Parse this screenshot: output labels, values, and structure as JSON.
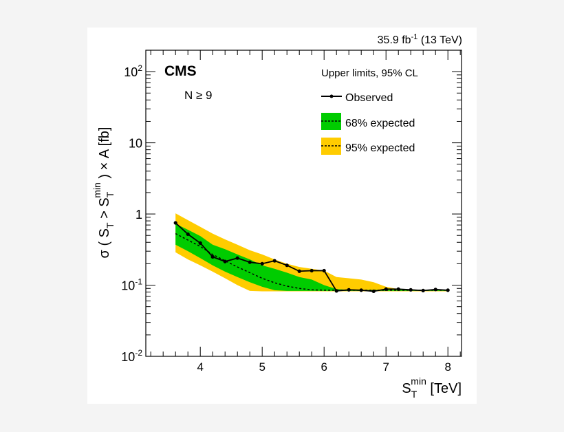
{
  "chart_data": {
    "type": "line",
    "lumi_label": "35.9 fb",
    "lumi_sup": "-1",
    "lumi_energy": "(13 TeV)",
    "experiment": "CMS",
    "selection": "N ≥ 9",
    "legend_title": "Upper limits, 95% CL",
    "legend_placement": "top-right",
    "xlabel": {
      "main": "S",
      "sub": "T",
      "sup": "min",
      "unit": "[TeV]"
    },
    "ylabel": [
      "σ ( S",
      "T",
      " > S",
      "T",
      "min",
      " ) × A [fb]"
    ],
    "xlim": [
      3.12,
      8.22
    ],
    "ylim": [
      0.01,
      200
    ],
    "yscale": "log",
    "grid": false,
    "x_ticks": [
      "4",
      "5",
      "6",
      "7",
      "8"
    ],
    "y_ticks": [
      {
        "base": "10",
        "exp": "-2"
      },
      {
        "base": "10",
        "exp": "-1"
      },
      {
        "base": "1",
        "exp": ""
      },
      {
        "base": "10",
        "exp": ""
      },
      {
        "base": "10",
        "exp": "2"
      }
    ],
    "x": [
      3.6,
      3.8,
      4.0,
      4.2,
      4.4,
      4.6,
      4.8,
      5.0,
      5.2,
      5.4,
      5.6,
      5.8,
      6.0,
      6.2,
      6.4,
      6.6,
      6.8,
      7.0,
      7.2,
      7.4,
      7.6,
      7.8,
      8.0
    ],
    "series": [
      {
        "name": "Observed",
        "color": "#000000",
        "values": [
          0.75,
          0.52,
          0.39,
          0.25,
          0.215,
          0.24,
          0.21,
          0.2,
          0.22,
          0.19,
          0.157,
          0.16,
          0.16,
          0.083,
          0.086,
          0.085,
          0.082,
          0.088,
          0.088,
          0.086,
          0.084,
          0.087,
          0.085
        ]
      },
      {
        "name": "68% expected",
        "color": "#00cc00",
        "median": [
          0.53,
          0.43,
          0.35,
          0.27,
          0.22,
          0.18,
          0.15,
          0.125,
          0.108,
          0.097,
          0.09,
          0.086,
          0.085,
          0.085,
          0.085,
          0.085,
          0.085,
          0.085,
          0.085,
          0.085,
          0.085,
          0.085,
          0.085
        ],
        "upper": [
          0.73,
          0.6,
          0.49,
          0.37,
          0.32,
          0.27,
          0.23,
          0.19,
          0.17,
          0.15,
          0.13,
          0.12,
          0.1,
          0.088,
          0.086,
          0.086,
          0.086,
          0.086,
          0.086,
          0.086,
          0.086,
          0.086,
          0.086
        ],
        "lower": [
          0.37,
          0.3,
          0.24,
          0.19,
          0.155,
          0.13,
          0.11,
          0.095,
          0.085,
          0.083,
          0.083,
          0.083,
          0.083,
          0.083,
          0.083,
          0.083,
          0.083,
          0.083,
          0.083,
          0.083,
          0.083,
          0.083,
          0.083
        ]
      },
      {
        "name": "95% expected",
        "color": "#ffcc00",
        "upper": [
          1.02,
          0.82,
          0.66,
          0.53,
          0.44,
          0.37,
          0.31,
          0.27,
          0.23,
          0.2,
          0.18,
          0.17,
          0.16,
          0.13,
          0.125,
          0.12,
          0.11,
          0.095,
          0.088,
          0.087,
          0.086,
          0.086,
          0.086
        ],
        "lower": [
          0.29,
          0.23,
          0.19,
          0.155,
          0.125,
          0.1,
          0.083,
          0.082,
          0.082,
          0.082,
          0.082,
          0.082,
          0.082,
          0.082,
          0.082,
          0.082,
          0.082,
          0.082,
          0.082,
          0.082,
          0.082,
          0.082,
          0.082
        ]
      }
    ]
  }
}
